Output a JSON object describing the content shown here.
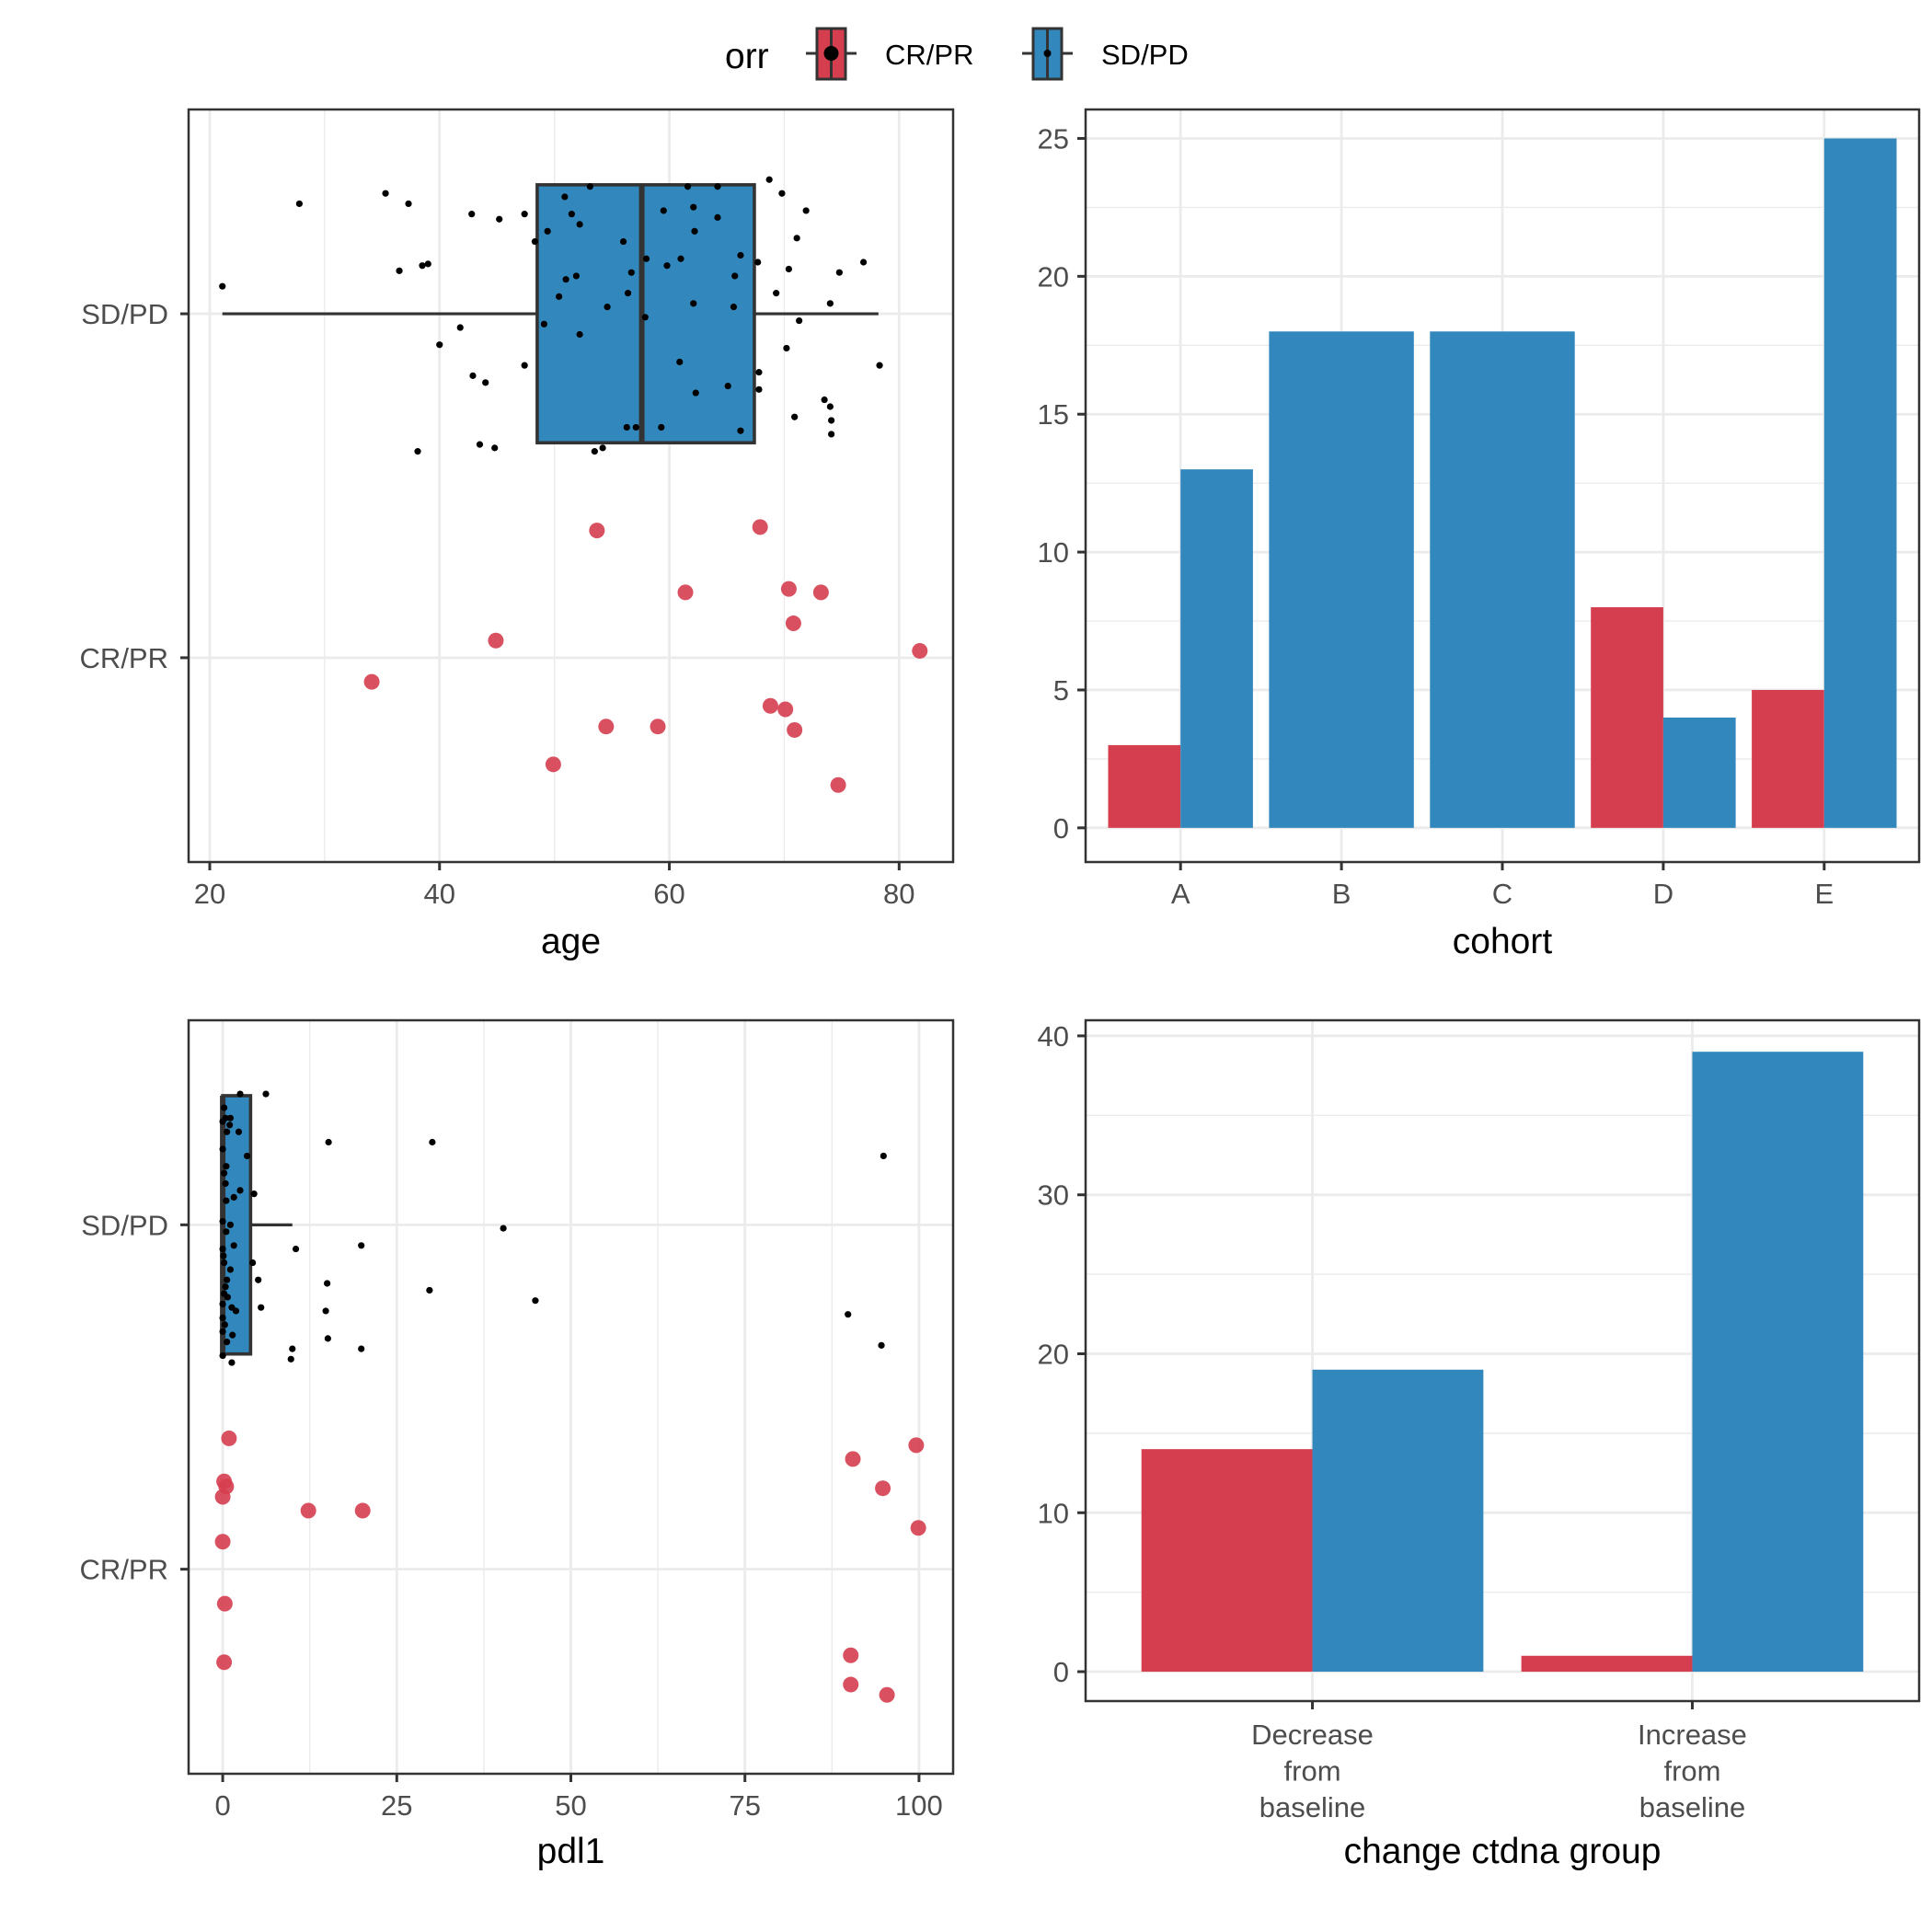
{
  "colors": {
    "cr_pr": "#D53E4F",
    "sd_pd": "#3288BD",
    "outline": "#333333",
    "grid": "#ebebeb",
    "point_black": "#000000"
  },
  "legend": {
    "title": "orr",
    "items": [
      {
        "label": "CR/PR",
        "color": "#D53E4F"
      },
      {
        "label": "SD/PD",
        "color": "#3288BD"
      }
    ]
  },
  "chart_data": [
    {
      "id": "age",
      "type": "boxplot+jitter",
      "xlabel": "age",
      "ylabel": "",
      "x_ticks": [
        20,
        40,
        60,
        80
      ],
      "x_range": [
        18.16,
        84.7
      ],
      "y_categories": [
        "CR/PR",
        "SD/PD"
      ],
      "grid": true,
      "boxes": [
        {
          "category": "SD/PD",
          "whisker_low": 21.1,
          "q1": 48.5,
          "median": 57.6,
          "q3": 67.4,
          "whisker_high": 78.2
        }
      ],
      "points": {
        "SD/PD": [
          [
            21.1,
            0.08
          ],
          [
            27.8,
            0.32
          ],
          [
            35.3,
            0.35
          ],
          [
            37.3,
            0.32
          ],
          [
            36.5,
            0.125
          ],
          [
            38.5,
            0.14
          ],
          [
            39.0,
            0.145
          ],
          [
            40.0,
            -0.09
          ],
          [
            41.8,
            -0.04
          ],
          [
            42.8,
            0.29
          ],
          [
            45.2,
            0.275
          ],
          [
            42.9,
            -0.18
          ],
          [
            44.0,
            -0.2
          ],
          [
            38.1,
            -0.4
          ],
          [
            43.5,
            -0.38
          ],
          [
            44.8,
            -0.39
          ],
          [
            47.4,
            0.29
          ],
          [
            47.4,
            -0.15
          ],
          [
            48.3,
            0.21
          ],
          [
            49.1,
            -0.03
          ],
          [
            49.4,
            0.24
          ],
          [
            50.4,
            0.05
          ],
          [
            50.9,
            0.34
          ],
          [
            51.0,
            0.1
          ],
          [
            51.5,
            0.29
          ],
          [
            51.9,
            0.11
          ],
          [
            52.2,
            0.26
          ],
          [
            52.2,
            -0.06
          ],
          [
            53.1,
            0.37
          ],
          [
            53.5,
            -0.4
          ],
          [
            54.2,
            -0.39
          ],
          [
            54.6,
            0.02
          ],
          [
            56.0,
            0.21
          ],
          [
            56.3,
            -0.33
          ],
          [
            56.4,
            0.06
          ],
          [
            56.7,
            0.12
          ],
          [
            57.1,
            -0.33
          ],
          [
            57.9,
            -0.01
          ],
          [
            58.0,
            0.16
          ],
          [
            59.3,
            -0.33
          ],
          [
            59.5,
            0.3
          ],
          [
            59.8,
            0.14
          ],
          [
            60.9,
            -0.14
          ],
          [
            61.0,
            0.16
          ],
          [
            61.6,
            0.37
          ],
          [
            62.1,
            0.31
          ],
          [
            62.2,
            0.24
          ],
          [
            62.1,
            0.03
          ],
          [
            62.3,
            -0.23
          ],
          [
            64.2,
            0.28
          ],
          [
            64.2,
            0.37
          ],
          [
            65.1,
            -0.21
          ],
          [
            65.6,
            0.02
          ],
          [
            65.7,
            0.11
          ],
          [
            66.2,
            0.17
          ],
          [
            66.2,
            -0.34
          ],
          [
            67.7,
            0.15
          ],
          [
            67.8,
            -0.17
          ],
          [
            67.8,
            -0.22
          ],
          [
            68.7,
            0.39
          ],
          [
            69.3,
            0.06
          ],
          [
            69.8,
            0.35
          ],
          [
            70.2,
            -0.1
          ],
          [
            70.4,
            0.13
          ],
          [
            70.9,
            -0.3
          ],
          [
            71.1,
            0.22
          ],
          [
            71.3,
            -0.02
          ],
          [
            71.9,
            0.3
          ],
          [
            73.5,
            -0.25
          ],
          [
            74.0,
            0.03
          ],
          [
            74.0,
            -0.27
          ],
          [
            74.1,
            -0.31
          ],
          [
            74.1,
            -0.35
          ],
          [
            74.8,
            0.12
          ],
          [
            76.9,
            0.15
          ],
          [
            78.3,
            -0.15
          ]
        ],
        "CR/PR": [
          [
            53.7,
            0.37
          ],
          [
            67.9,
            0.38
          ],
          [
            61.4,
            0.19
          ],
          [
            70.4,
            0.2
          ],
          [
            73.2,
            0.19
          ],
          [
            70.8,
            0.1
          ],
          [
            44.9,
            0.05
          ],
          [
            81.8,
            0.02
          ],
          [
            34.1,
            -0.07
          ],
          [
            68.8,
            -0.14
          ],
          [
            70.1,
            -0.15
          ],
          [
            54.5,
            -0.2
          ],
          [
            59.0,
            -0.2
          ],
          [
            70.9,
            -0.21
          ],
          [
            49.9,
            -0.31
          ],
          [
            74.7,
            -0.37
          ]
        ]
      }
    },
    {
      "id": "cohort",
      "type": "bar",
      "xlabel": "cohort",
      "ylabel": "",
      "categories": [
        "A",
        "B",
        "C",
        "D",
        "E"
      ],
      "y_ticks": [
        0,
        5,
        10,
        15,
        20,
        25
      ],
      "y_range": [
        -1.24,
        26.05
      ],
      "grid": true,
      "series": [
        {
          "name": "CR/PR",
          "values": [
            3,
            0,
            0,
            8,
            5
          ]
        },
        {
          "name": "SD/PD",
          "values": [
            13,
            18,
            18,
            4,
            25
          ]
        }
      ]
    },
    {
      "id": "pdl1",
      "type": "boxplot+jitter",
      "xlabel": "pdl1",
      "ylabel": "",
      "x_ticks": [
        0,
        25,
        50,
        75,
        100
      ],
      "x_range": [
        -4.9,
        104.9
      ],
      "y_categories": [
        "CR/PR",
        "SD/PD"
      ],
      "grid": true,
      "boxes": [
        {
          "category": "SD/PD",
          "whisker_low": 0,
          "q1": 0,
          "median": 0,
          "q3": 4,
          "whisker_high": 10
        }
      ],
      "points": {
        "SD/PD": [
          [
            2.5,
            0.38
          ],
          [
            6.2,
            0.38
          ],
          [
            0.2,
            0.34
          ],
          [
            1.1,
            0.31
          ],
          [
            0,
            0.3
          ],
          [
            0.4,
            0.31
          ],
          [
            1.0,
            0.29
          ],
          [
            0.6,
            0.27
          ],
          [
            2.3,
            0.27
          ],
          [
            0,
            0.22
          ],
          [
            3.5,
            0.2
          ],
          [
            0.5,
            0.17
          ],
          [
            0.2,
            0.15
          ],
          [
            0.4,
            0.12
          ],
          [
            2.5,
            0.1
          ],
          [
            1.6,
            0.08
          ],
          [
            4.5,
            0.09
          ],
          [
            0.5,
            0.07
          ],
          [
            0,
            0.01
          ],
          [
            1.1,
            0.0
          ],
          [
            0.5,
            -0.02
          ],
          [
            1.6,
            -0.06
          ],
          [
            0,
            -0.07
          ],
          [
            0.1,
            -0.09
          ],
          [
            0.2,
            -0.11
          ],
          [
            1.1,
            -0.13
          ],
          [
            4.3,
            -0.11
          ],
          [
            5.1,
            -0.16
          ],
          [
            0.6,
            -0.16
          ],
          [
            0.4,
            -0.18
          ],
          [
            0.2,
            -0.2
          ],
          [
            0.7,
            -0.21
          ],
          [
            0,
            -0.23
          ],
          [
            1.3,
            -0.24
          ],
          [
            1.9,
            -0.25
          ],
          [
            5.5,
            -0.24
          ],
          [
            0,
            -0.27
          ],
          [
            0.3,
            -0.29
          ],
          [
            0,
            -0.31
          ],
          [
            1.4,
            -0.32
          ],
          [
            0.6,
            -0.34
          ],
          [
            0,
            -0.38
          ],
          [
            1.3,
            -0.4
          ],
          [
            10.0,
            -0.36
          ],
          [
            9.8,
            -0.39
          ],
          [
            10.5,
            -0.07
          ],
          [
            15.2,
            0.24
          ],
          [
            30.1,
            0.24
          ],
          [
            94.9,
            0.2
          ],
          [
            40.3,
            -0.01
          ],
          [
            19.9,
            -0.06
          ],
          [
            15.0,
            -0.17
          ],
          [
            29.7,
            -0.19
          ],
          [
            44.9,
            -0.22
          ],
          [
            14.8,
            -0.25
          ],
          [
            89.8,
            -0.26
          ],
          [
            15.1,
            -0.33
          ],
          [
            94.6,
            -0.35
          ],
          [
            19.9,
            -0.36
          ]
        ],
        "CR/PR": [
          [
            0.9,
            0.38
          ],
          [
            0.2,
            0.255
          ],
          [
            0.5,
            0.24
          ],
          [
            0,
            0.21
          ],
          [
            12.3,
            0.17
          ],
          [
            20.1,
            0.17
          ],
          [
            0,
            0.08
          ],
          [
            0.3,
            -0.1
          ],
          [
            0.2,
            -0.27
          ],
          [
            99.6,
            0.36
          ],
          [
            90.5,
            0.32
          ],
          [
            94.8,
            0.235
          ],
          [
            99.9,
            0.12
          ],
          [
            90.2,
            -0.25
          ],
          [
            90.2,
            -0.335
          ],
          [
            95.4,
            -0.365
          ]
        ]
      }
    },
    {
      "id": "ctdna",
      "type": "bar",
      "xlabel": "change ctdna group",
      "ylabel": "",
      "categories": [
        [
          "Decrease",
          "from",
          "baseline"
        ],
        [
          "Increase",
          "from",
          "baseline"
        ]
      ],
      "y_ticks": [
        0,
        10,
        20,
        30,
        40
      ],
      "y_range": [
        -1.85,
        40.98
      ],
      "grid": true,
      "series": [
        {
          "name": "CR/PR",
          "values": [
            14,
            1
          ]
        },
        {
          "name": "SD/PD",
          "values": [
            19,
            39
          ]
        }
      ]
    }
  ]
}
